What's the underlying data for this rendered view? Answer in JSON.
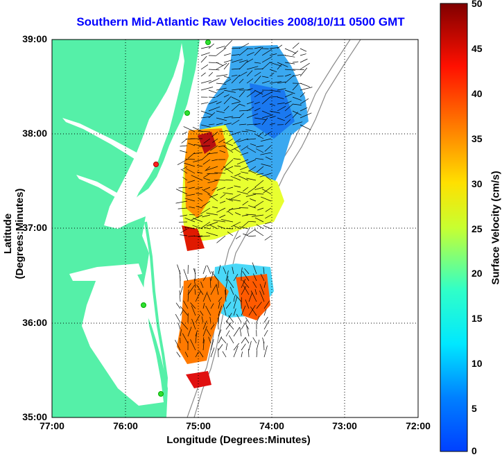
{
  "title": "Southern Mid-Atlantic Raw Velocities 2008/10/11 0500 GMT",
  "map": {
    "xlabel": "Longitude (Degrees:Minutes)",
    "ylabel": "Latitude (Degrees:Minutes)",
    "lon_ticks": [
      "77:00",
      "76:00",
      "75:00",
      "74:00",
      "73:00",
      "72:00"
    ],
    "lat_ticks": [
      "39:00",
      "38:00",
      "37:00",
      "36:00",
      "35:00"
    ],
    "extent": {
      "lon": [
        -77,
        -72
      ],
      "lat": [
        35,
        39
      ]
    },
    "land_color": "#55f0a8",
    "water_color": "#ffffff",
    "grid": "dotted"
  },
  "colorbar": {
    "label": "Surface Velocity (cm/s)",
    "ticks": [
      "50",
      "45",
      "40",
      "35",
      "30",
      "25",
      "20",
      "15",
      "10",
      "5",
      "0"
    ],
    "range": [
      0,
      50
    ],
    "colormap": "jet"
  },
  "chart_data": {
    "type": "heatmap",
    "title": "Southern Mid-Atlantic Raw Velocities 2008/10/11 0500 GMT",
    "xlabel": "Longitude (Degrees:Minutes)",
    "ylabel": "Latitude (Degrees:Minutes)",
    "x_range": [
      -77,
      -72
    ],
    "y_range": [
      35,
      39
    ],
    "value_label": "Surface Velocity (cm/s)",
    "value_range": [
      0,
      50
    ],
    "regions": [
      {
        "lon": [
          -75.6,
          -74.3
        ],
        "lat": [
          38.2,
          39.0
        ],
        "speed": 8
      },
      {
        "lon": [
          -75.1,
          -74.6
        ],
        "lat": [
          37.7,
          38.1
        ],
        "speed": 38
      },
      {
        "lon": [
          -75.1,
          -74.8
        ],
        "lat": [
          37.0,
          37.5
        ],
        "speed": 32
      },
      {
        "lon": [
          -75.1,
          -74.9
        ],
        "lat": [
          36.8,
          37.0
        ],
        "speed": 40
      },
      {
        "lon": [
          -74.6,
          -74.3
        ],
        "lat": [
          36.0,
          36.4
        ],
        "speed": 38
      },
      {
        "lon": [
          -75.1,
          -74.8
        ],
        "lat": [
          35.7,
          36.0
        ],
        "speed": 35
      },
      {
        "lon": [
          -75.2,
          -74.9
        ],
        "lat": [
          35.35,
          35.45
        ],
        "speed": 45
      }
    ]
  }
}
